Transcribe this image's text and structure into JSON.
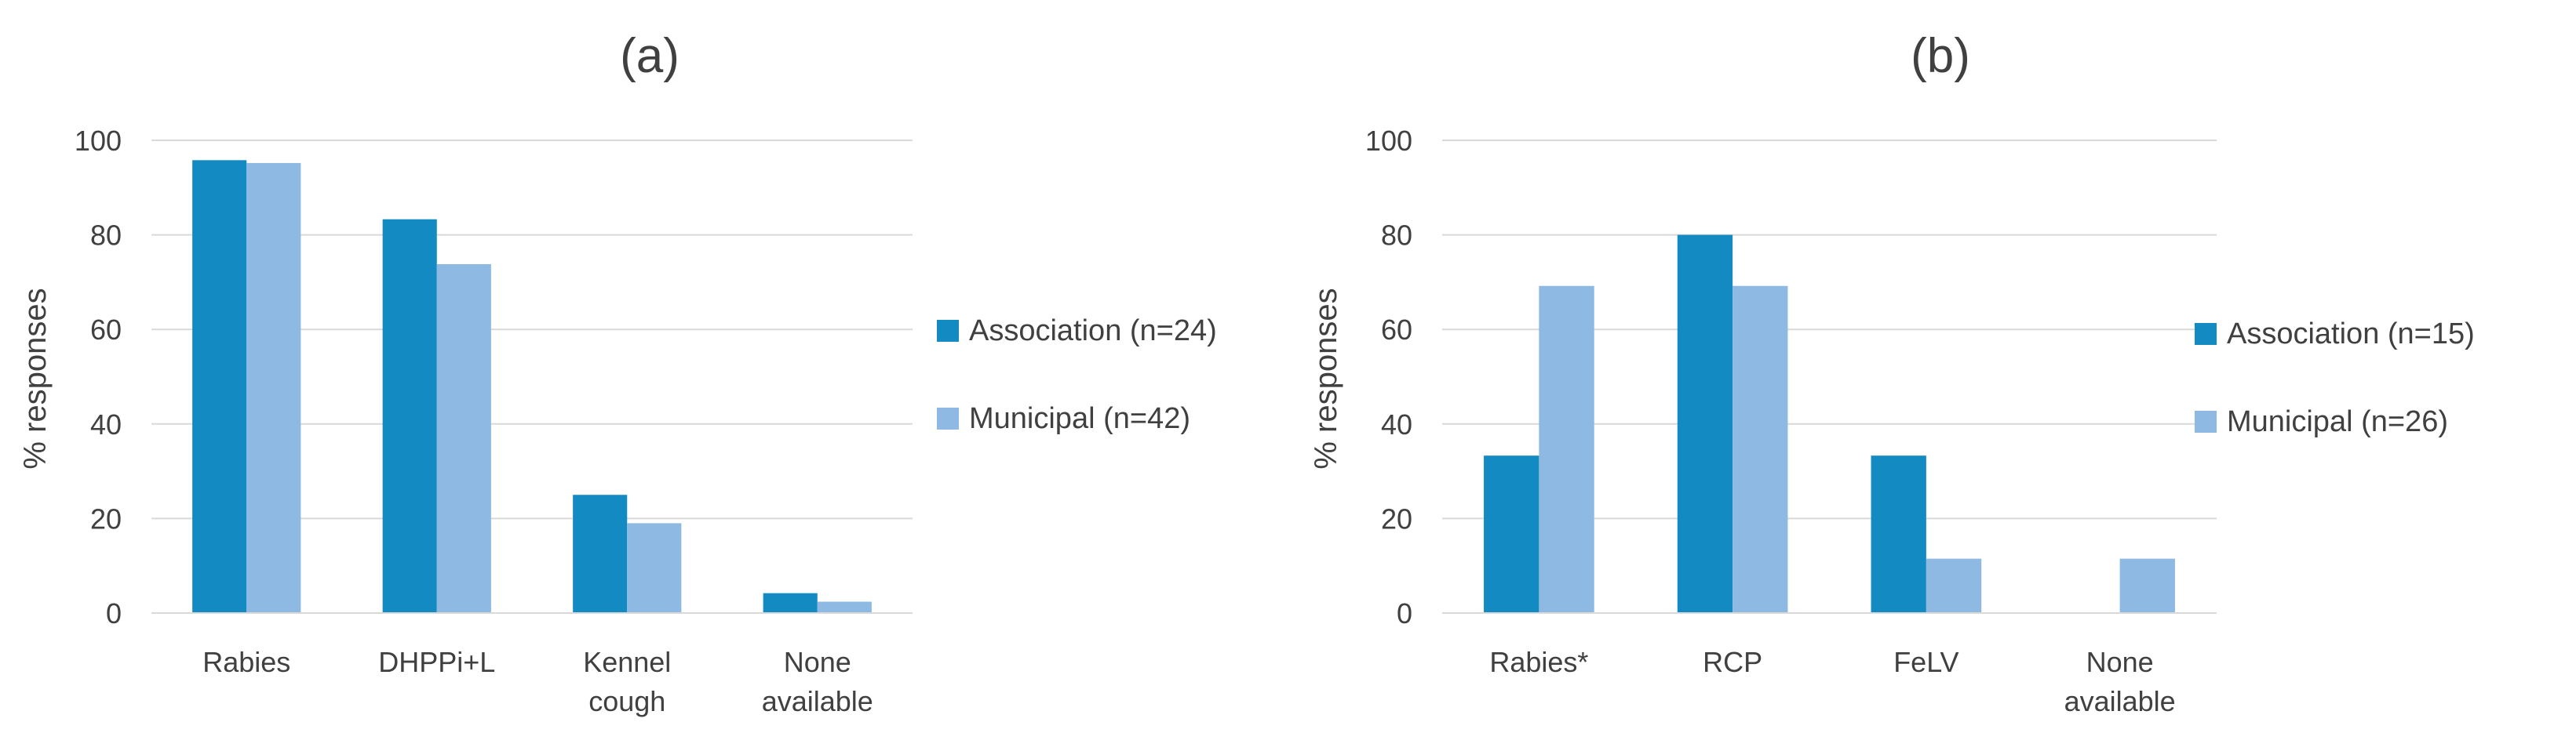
{
  "chart_data": [
    {
      "type": "bar",
      "title": "(a)",
      "ylabel": "% responses",
      "xlabel": "",
      "ylim": [
        0,
        100
      ],
      "yticks": [
        0,
        20,
        40,
        60,
        80,
        100
      ],
      "grid": true,
      "legend_position": "right",
      "categories": [
        "Rabies",
        "DHPPi+L",
        "Kennel cough",
        "None available"
      ],
      "category_lines": [
        [
          "Rabies"
        ],
        [
          "DHPPi+L"
        ],
        [
          "Kennel",
          "cough"
        ],
        [
          "None",
          "available"
        ]
      ],
      "series": [
        {
          "name": "Association (n=24)",
          "color": "#138ac1",
          "values": [
            95.8,
            83.3,
            25.0,
            4.2
          ]
        },
        {
          "name": "Municipal (n=42)",
          "color": "#8db9e2",
          "values": [
            95.2,
            73.8,
            19.0,
            2.4
          ]
        }
      ]
    },
    {
      "type": "bar",
      "title": "(b)",
      "ylabel": "% responses",
      "xlabel": "",
      "ylim": [
        0,
        100
      ],
      "yticks": [
        0,
        20,
        40,
        60,
        80,
        100
      ],
      "grid": true,
      "legend_position": "right",
      "categories": [
        "Rabies*",
        "RCP",
        "FeLV",
        "None available"
      ],
      "category_lines": [
        [
          "Rabies*"
        ],
        [
          "RCP"
        ],
        [
          "FeLV"
        ],
        [
          "None",
          "available"
        ]
      ],
      "series": [
        {
          "name": "Association (n=15)",
          "color": "#138ac1",
          "values": [
            33.3,
            80.0,
            33.3,
            0
          ]
        },
        {
          "name": "Municipal (n=26)",
          "color": "#8db9e2",
          "values": [
            69.2,
            69.2,
            11.5,
            11.5
          ]
        }
      ]
    }
  ]
}
